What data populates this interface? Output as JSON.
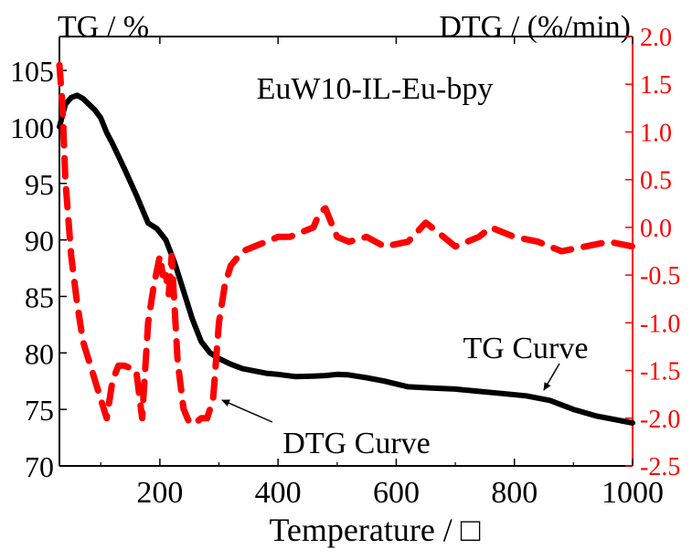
{
  "chart_data": {
    "type": "line",
    "title": "EuW10-IL-Eu-bpy",
    "xlabel": "Temperature / □",
    "ylabel_left": "TG / %",
    "ylabel_right": "DTG / (%/min)",
    "xlim": [
      30,
      1000
    ],
    "ylim_left": [
      70,
      108
    ],
    "ylim_right": [
      -2.5,
      2.0
    ],
    "x_ticks": [
      200,
      400,
      600,
      800,
      1000
    ],
    "x_tick_labels": [
      "200",
      "400",
      "600",
      "800",
      "1000"
    ],
    "y_left_ticks": [
      70,
      75,
      80,
      85,
      90,
      95,
      100,
      105
    ],
    "y_left_tick_labels": [
      "70",
      "75",
      "80",
      "85",
      "90",
      "95",
      "100",
      "105"
    ],
    "y_right_ticks": [
      -2.5,
      -2.0,
      -1.5,
      -1.0,
      -0.5,
      0.0,
      0.5,
      1.0,
      1.5,
      2.0
    ],
    "y_right_tick_labels": [
      "-2.5",
      "-2.0",
      "-1.5",
      "-1.0",
      "-0.5",
      "0.0",
      "0.5",
      "1.0",
      "1.5",
      "2.0"
    ],
    "grid": false,
    "colors": {
      "tg": "#000000",
      "dtg": "#ff0000",
      "right_axis": "#ff0000"
    },
    "series": [
      {
        "name": "TG Curve",
        "axis": "left",
        "style": "solid",
        "x": [
          30,
          40,
          50,
          60,
          70,
          80,
          90,
          100,
          110,
          120,
          140,
          160,
          180,
          195,
          210,
          225,
          240,
          255,
          270,
          285,
          300,
          320,
          340,
          360,
          380,
          400,
          430,
          460,
          480,
          500,
          520,
          550,
          580,
          620,
          660,
          700,
          740,
          780,
          820,
          860,
          900,
          940,
          980,
          1000
        ],
        "y": [
          100.0,
          102.0,
          102.6,
          102.8,
          102.5,
          102.0,
          101.5,
          100.8,
          99.5,
          98.5,
          96.3,
          94.0,
          91.5,
          91.0,
          90.0,
          88.0,
          85.5,
          83.0,
          81.0,
          80.0,
          79.5,
          79.0,
          78.6,
          78.4,
          78.2,
          78.1,
          77.9,
          77.95,
          78.0,
          78.1,
          78.05,
          77.8,
          77.5,
          77.0,
          76.9,
          76.8,
          76.6,
          76.4,
          76.2,
          75.8,
          75.0,
          74.4,
          74.0,
          73.8
        ]
      },
      {
        "name": "DTG Curve",
        "axis": "right",
        "style": "dashed",
        "x": [
          30,
          35,
          40,
          50,
          60,
          70,
          85,
          100,
          110,
          120,
          130,
          140,
          160,
          170,
          180,
          190,
          200,
          205,
          210,
          215,
          220,
          230,
          240,
          250,
          260,
          270,
          280,
          290,
          300,
          310,
          320,
          340,
          360,
          380,
          400,
          420,
          440,
          460,
          470,
          480,
          490,
          500,
          520,
          550,
          580,
          620,
          650,
          680,
          700,
          720,
          740,
          760,
          780,
          800,
          840,
          880,
          920,
          960,
          1000
        ],
        "y": [
          1.7,
          1.3,
          0.5,
          -0.3,
          -0.8,
          -1.2,
          -1.5,
          -1.8,
          -2.0,
          -1.6,
          -1.45,
          -1.45,
          -1.5,
          -2.0,
          -1.0,
          -0.6,
          -0.3,
          -0.5,
          -0.5,
          -0.7,
          -0.3,
          -1.4,
          -1.9,
          -2.05,
          -2.05,
          -2.0,
          -2.0,
          -1.8,
          -1.0,
          -0.6,
          -0.4,
          -0.25,
          -0.2,
          -0.15,
          -0.1,
          -0.1,
          -0.05,
          0.0,
          0.15,
          0.2,
          0.05,
          -0.1,
          -0.15,
          -0.1,
          -0.2,
          -0.15,
          0.05,
          -0.1,
          -0.2,
          -0.15,
          -0.1,
          0.0,
          -0.05,
          -0.1,
          -0.15,
          -0.25,
          -0.2,
          -0.15,
          -0.2
        ]
      }
    ],
    "annotations": [
      {
        "text": "TG Curve",
        "target_series": "TG Curve",
        "target_x": 860
      },
      {
        "text": "DTG Curve",
        "target_series": "DTG Curve",
        "target_x": 295
      }
    ]
  }
}
